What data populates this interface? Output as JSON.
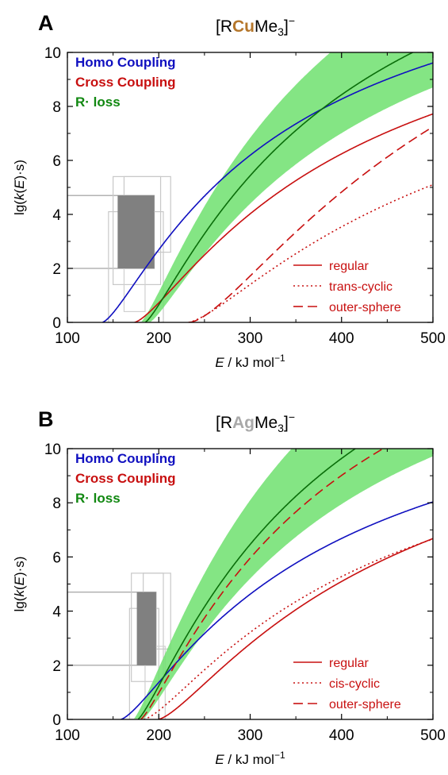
{
  "chart_data": [
    {
      "type": "line",
      "panel_letter": "A",
      "title": {
        "pre": "[R",
        "metal": "Cu",
        "post": "Me",
        "sub": "3",
        "tail": "]",
        "sup": "−"
      },
      "metal_color": "#b5762a",
      "xlabel": {
        "var": "E",
        "unit": " / kJ mol",
        "unit_sup": "−1"
      },
      "ylabel": {
        "pre": "lg(",
        "var": "k",
        "mid": "(",
        "var2": "E",
        "post": ")·s)"
      },
      "xlim": [
        100,
        500
      ],
      "ylim": [
        0,
        10
      ],
      "xticks": [
        "100",
        "200",
        "300",
        "400",
        "500"
      ],
      "yticks": [
        "0",
        "2",
        "4",
        "6",
        "8",
        "10"
      ],
      "legend_top": [
        {
          "label": "Homo Coupling",
          "color": "#1010c0"
        },
        {
          "label": "Cross Coupling",
          "color": "#c81010"
        },
        {
          "label": "R· loss",
          "color": "#118811"
        }
      ],
      "legend_bottom": [
        {
          "label": "regular",
          "dash": "solid"
        },
        {
          "label": "trans-cyclic",
          "dash": "dotted"
        },
        {
          "label": "outer-sphere",
          "dash": "dashed"
        }
      ],
      "series": [
        {
          "group": "Homo Coupling",
          "style": "regular",
          "color": "#1010c0",
          "E0": 138,
          "A": 15.6,
          "n": 1.5
        },
        {
          "group": "Cross Coupling",
          "style": "regular",
          "color": "#c81010",
          "E0": 173,
          "A": 14.6,
          "n": 1.5
        },
        {
          "group": "Cross Coupling",
          "style": "trans-cyclic",
          "color": "#c81010",
          "E0": 232,
          "A": 13.0,
          "n": 1.5
        },
        {
          "group": "Cross Coupling",
          "style": "outer-sphere",
          "color": "#c81010",
          "E0": 233,
          "A": 20.4,
          "n": 1.65
        },
        {
          "group": "R· loss",
          "style": "regular",
          "color": "#0a6e0a",
          "E0": 185,
          "A": 18.9,
          "n": 1.3
        }
      ],
      "band": {
        "color": "#6fe06f",
        "E0_low": 180,
        "E0_high": 190,
        "A_low": 22.5,
        "A_high": 16.2,
        "n": 1.3
      },
      "gray_box": {
        "x": [
          155,
          195
        ],
        "y": [
          2.0,
          4.7
        ],
        "fill": "#808080"
      },
      "outline_boxes": [
        {
          "x": [
            100,
            195
          ],
          "y": [
            2.0,
            4.7
          ],
          "color": "#a0a0a0"
        },
        {
          "x": [
            150,
            202
          ],
          "y": [
            1.4,
            5.4
          ],
          "color": "#c8c8c8"
        },
        {
          "x": [
            162,
            213
          ],
          "y": [
            2.6,
            5.4
          ],
          "color": "#c8c8c8"
        },
        {
          "x": [
            145,
            205
          ],
          "y": [
            0,
            4.1
          ],
          "color": "#c8c8c8"
        },
        {
          "x": [
            162,
            185
          ],
          "y": [
            0.4,
            2.6
          ],
          "color": "#d0d0d0"
        }
      ]
    },
    {
      "type": "line",
      "panel_letter": "B",
      "title": {
        "pre": "[R",
        "metal": "Ag",
        "post": "Me",
        "sub": "3",
        "tail": "]",
        "sup": "−"
      },
      "metal_color": "#a9a9a9",
      "xlabel": {
        "var": "E",
        "unit": " / kJ mol",
        "unit_sup": "−1"
      },
      "ylabel": {
        "pre": "lg(",
        "var": "k",
        "mid": "(",
        "var2": "E",
        "post": ")·s)"
      },
      "xlim": [
        100,
        500
      ],
      "ylim": [
        0,
        10
      ],
      "xticks": [
        "100",
        "200",
        "300",
        "400",
        "500"
      ],
      "yticks": [
        "0",
        "2",
        "4",
        "6",
        "8",
        "10"
      ],
      "legend_top": [
        {
          "label": "Homo Coupling",
          "color": "#1010c0"
        },
        {
          "label": "Cross Coupling",
          "color": "#c81010"
        },
        {
          "label": "R· loss",
          "color": "#118811"
        }
      ],
      "legend_bottom": [
        {
          "label": "regular",
          "dash": "solid"
        },
        {
          "label": "cis-cyclic",
          "dash": "dotted"
        },
        {
          "label": "outer-sphere",
          "dash": "dashed"
        }
      ],
      "series": [
        {
          "group": "Homo Coupling",
          "style": "regular",
          "color": "#1010c0",
          "E0": 158,
          "A": 14.2,
          "n": 1.5
        },
        {
          "group": "Cross Coupling",
          "style": "regular",
          "color": "#c81010",
          "E0": 199,
          "A": 14.3,
          "n": 1.5
        },
        {
          "group": "Cross Coupling",
          "style": "cis-cyclic",
          "color": "#c81010",
          "E0": 183,
          "A": 13.2,
          "n": 1.5
        },
        {
          "group": "Cross Coupling",
          "style": "outer-sphere",
          "color": "#c81010",
          "E0": 180,
          "A": 19.6,
          "n": 1.3
        },
        {
          "group": "R· loss",
          "style": "regular",
          "color": "#0a6e0a",
          "E0": 177,
          "A": 20.6,
          "n": 1.3
        }
      ],
      "band": {
        "color": "#6fe06f",
        "E0_low": 172,
        "E0_high": 182,
        "A_low": 24.5,
        "A_high": 17.5,
        "n": 1.3
      },
      "gray_box": {
        "x": [
          176,
          197
        ],
        "y": [
          2.0,
          4.7
        ],
        "fill": "#808080"
      },
      "outline_boxes": [
        {
          "x": [
            100,
            197
          ],
          "y": [
            2.0,
            4.7
          ],
          "color": "#a0a0a0"
        },
        {
          "x": [
            170,
            205
          ],
          "y": [
            1.4,
            5.4
          ],
          "color": "#c8c8c8"
        },
        {
          "x": [
            183,
            213
          ],
          "y": [
            2.6,
            5.4
          ],
          "color": "#c8c8c8"
        },
        {
          "x": [
            168,
            200
          ],
          "y": [
            0,
            4.1
          ],
          "color": "#c8c8c8"
        },
        {
          "x": [
            185,
            207
          ],
          "y": [
            0,
            2.7
          ],
          "color": "#d0d0d0"
        }
      ]
    }
  ]
}
